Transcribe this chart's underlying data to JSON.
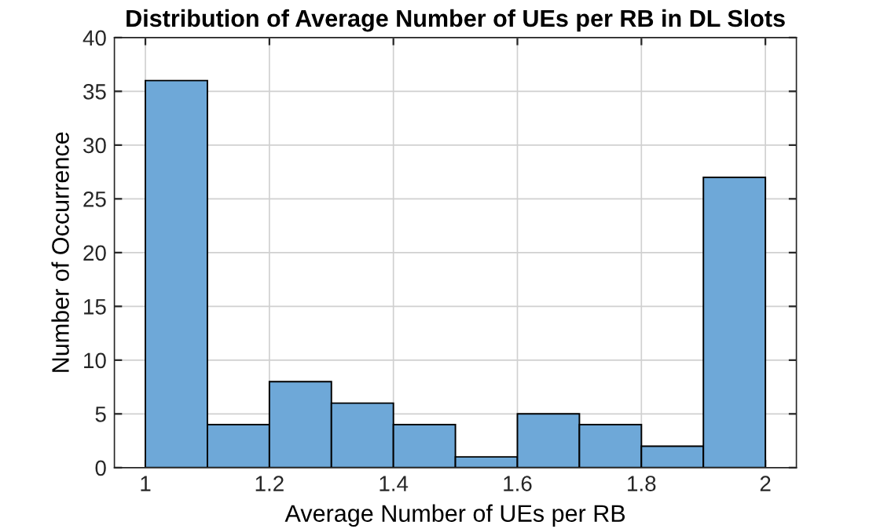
{
  "chart_data": {
    "type": "histogram",
    "title": "Distribution of Average Number of UEs per RB in DL Slots",
    "xlabel": "Average Number of UEs per RB",
    "ylabel": "Number of Occurrence",
    "bins": [
      1.0,
      1.1,
      1.2,
      1.3,
      1.4,
      1.5,
      1.6,
      1.7,
      1.8,
      1.9,
      2.0
    ],
    "values": [
      36,
      4,
      8,
      6,
      4,
      1,
      5,
      4,
      2,
      27
    ],
    "color": "#6ea8d8",
    "xlim": [
      0.95,
      2.05
    ],
    "xticks": [
      1,
      1.2,
      1.4,
      1.6,
      1.8,
      2
    ],
    "ylim": [
      0,
      40
    ],
    "yticks": [
      0,
      5,
      10,
      15,
      20,
      25,
      30,
      35,
      40
    ],
    "grid": true
  }
}
